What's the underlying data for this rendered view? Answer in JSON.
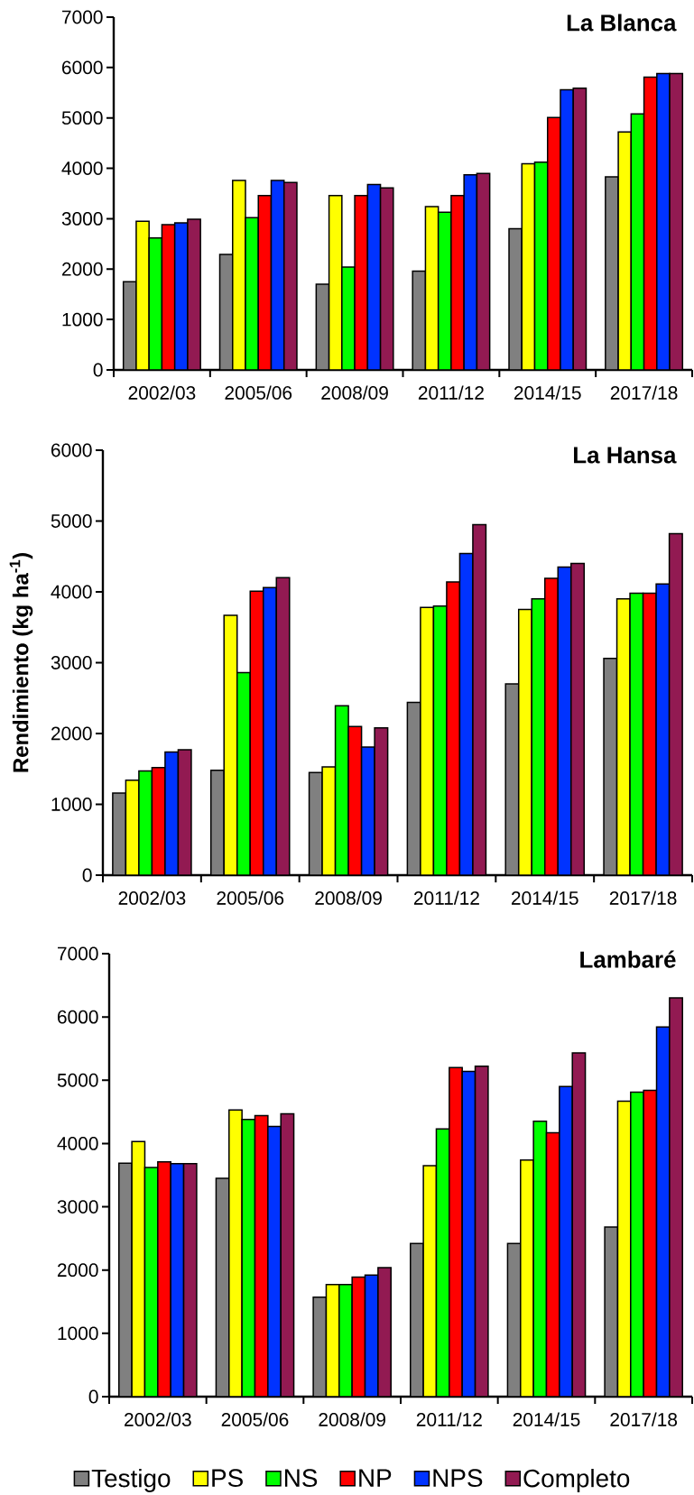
{
  "chart_data": [
    {
      "type": "bar",
      "title": "La Blanca",
      "categories": [
        "2002/03",
        "2005/06",
        "2008/09",
        "2011/12",
        "2014/15",
        "2017/18"
      ],
      "series": [
        {
          "color": "#808080",
          "values": [
            1750,
            2290,
            1700,
            1960,
            2800,
            3830
          ]
        },
        {
          "color": "#ffff00",
          "values": [
            2950,
            3760,
            3460,
            3240,
            4090,
            4720
          ]
        },
        {
          "color": "#00ff00",
          "values": [
            2620,
            3020,
            2040,
            3130,
            4120,
            5080
          ]
        },
        {
          "color": "#ff0000",
          "values": [
            2880,
            3460,
            3460,
            3460,
            5010,
            5810
          ]
        },
        {
          "color": "#0033ff",
          "values": [
            2920,
            3760,
            3680,
            3870,
            5560,
            5880
          ]
        },
        {
          "color": "#921a52",
          "values": [
            2990,
            3720,
            3610,
            3900,
            5590,
            5880
          ]
        }
      ],
      "ylim": [
        0,
        7000
      ],
      "yticks": [
        0,
        1000,
        2000,
        3000,
        4000,
        5000,
        6000,
        7000
      ]
    },
    {
      "type": "bar",
      "title": "La Hansa",
      "ylabel": "Rendimiento (kg ha$^{-1}$)",
      "categories": [
        "2002/03",
        "2005/06",
        "2008/09",
        "2011/12",
        "2014/15",
        "2017/18"
      ],
      "series": [
        {
          "color": "#808080",
          "values": [
            1160,
            1480,
            1450,
            2440,
            2700,
            3060
          ]
        },
        {
          "color": "#ffff00",
          "values": [
            1340,
            3670,
            1530,
            3780,
            3750,
            3900
          ]
        },
        {
          "color": "#00ff00",
          "values": [
            1470,
            2860,
            2390,
            3800,
            3900,
            3980
          ]
        },
        {
          "color": "#ff0000",
          "values": [
            1520,
            4010,
            2100,
            4140,
            4190,
            3980
          ]
        },
        {
          "color": "#0033ff",
          "values": [
            1740,
            4060,
            1810,
            4540,
            4350,
            4110
          ]
        },
        {
          "color": "#921a52",
          "values": [
            1770,
            4200,
            2080,
            4950,
            4400,
            4820
          ]
        }
      ],
      "ylim": [
        0,
        6000
      ],
      "yticks": [
        0,
        1000,
        2000,
        3000,
        4000,
        5000,
        6000
      ]
    },
    {
      "type": "bar",
      "title": "Lambaré",
      "categories": [
        "2002/03",
        "2005/06",
        "2008/09",
        "2011/12",
        "2014/15",
        "2017/18"
      ],
      "series": [
        {
          "name": "Testigo",
          "color": "#808080",
          "values": [
            3690,
            3450,
            1570,
            2420,
            2420,
            2680
          ]
        },
        {
          "name": "PS",
          "color": "#ffff00",
          "values": [
            4030,
            4530,
            1770,
            3650,
            3740,
            4670
          ]
        },
        {
          "name": "NS",
          "color": "#00ff00",
          "values": [
            3620,
            4380,
            1770,
            4230,
            4350,
            4810
          ]
        },
        {
          "name": "NP",
          "color": "#ff0000",
          "values": [
            3710,
            4440,
            1890,
            5200,
            4170,
            4840
          ]
        },
        {
          "name": "NPS",
          "color": "#0033ff",
          "values": [
            3680,
            4270,
            1920,
            5140,
            4900,
            5840
          ]
        },
        {
          "name": "Completo",
          "color": "#921a52",
          "values": [
            3680,
            4470,
            2040,
            5220,
            5430,
            6300
          ]
        }
      ],
      "ylim": [
        0,
        7000
      ],
      "yticks": [
        0,
        1000,
        2000,
        3000,
        4000,
        5000,
        6000,
        7000
      ],
      "legend": "bottom"
    }
  ]
}
